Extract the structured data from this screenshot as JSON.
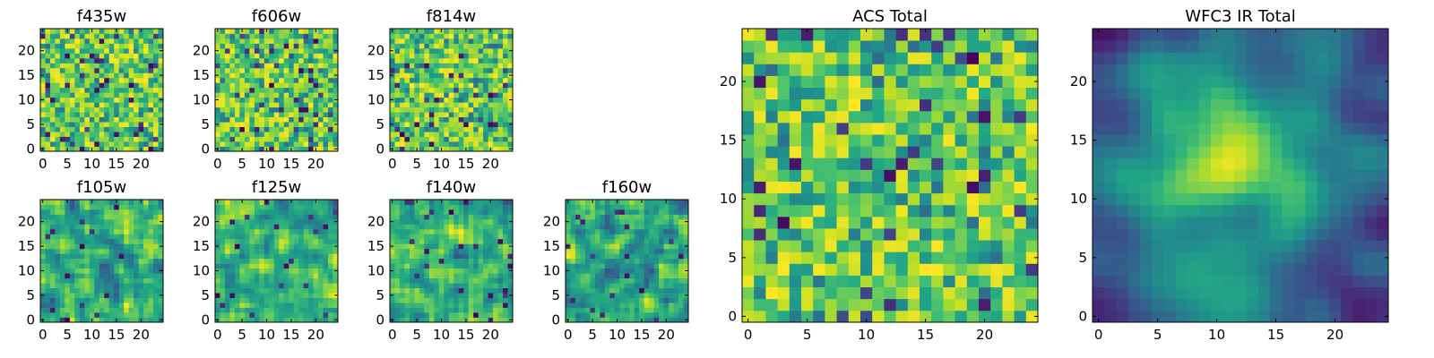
{
  "chart_data": [
    {
      "type": "heatmap",
      "title": "f435w",
      "colormap": "viridis",
      "xlim": [
        0,
        24
      ],
      "ylim": [
        0,
        24
      ],
      "xticks": [
        "0",
        "5",
        "10",
        "15",
        "20"
      ],
      "yticks": [
        "0",
        "5",
        "10",
        "15",
        "20"
      ],
      "grid_size": [
        25,
        25
      ],
      "texture": "fine"
    },
    {
      "type": "heatmap",
      "title": "f606w",
      "colormap": "viridis",
      "xlim": [
        0,
        24
      ],
      "ylim": [
        0,
        24
      ],
      "xticks": [
        "0",
        "5",
        "10",
        "15",
        "20"
      ],
      "yticks": [
        "0",
        "5",
        "10",
        "15",
        "20"
      ],
      "grid_size": [
        25,
        25
      ],
      "texture": "fine"
    },
    {
      "type": "heatmap",
      "title": "f814w",
      "colormap": "viridis",
      "xlim": [
        0,
        24
      ],
      "ylim": [
        0,
        24
      ],
      "xticks": [
        "0",
        "5",
        "10",
        "15",
        "20"
      ],
      "yticks": [
        "0",
        "5",
        "10",
        "15",
        "20"
      ],
      "grid_size": [
        25,
        25
      ],
      "texture": "fine"
    },
    {
      "type": "heatmap",
      "title": "f105w",
      "colormap": "viridis",
      "xlim": [
        0,
        24
      ],
      "ylim": [
        0,
        24
      ],
      "xticks": [
        "0",
        "5",
        "10",
        "15",
        "20"
      ],
      "yticks": [
        "0",
        "5",
        "10",
        "15",
        "20"
      ],
      "grid_size": [
        25,
        25
      ],
      "texture": "smooth"
    },
    {
      "type": "heatmap",
      "title": "f125w",
      "colormap": "viridis",
      "xlim": [
        0,
        24
      ],
      "ylim": [
        0,
        24
      ],
      "xticks": [
        "0",
        "5",
        "10",
        "15",
        "20"
      ],
      "yticks": [
        "0",
        "5",
        "10",
        "15",
        "20"
      ],
      "grid_size": [
        25,
        25
      ],
      "texture": "smooth"
    },
    {
      "type": "heatmap",
      "title": "f140w",
      "colormap": "viridis",
      "xlim": [
        0,
        24
      ],
      "ylim": [
        0,
        24
      ],
      "xticks": [
        "0",
        "5",
        "10",
        "15",
        "20"
      ],
      "yticks": [
        "0",
        "5",
        "10",
        "15",
        "20"
      ],
      "grid_size": [
        25,
        25
      ],
      "texture": "smooth"
    },
    {
      "type": "heatmap",
      "title": "f160w",
      "colormap": "viridis",
      "xlim": [
        0,
        24
      ],
      "ylim": [
        0,
        24
      ],
      "xticks": [
        "0",
        "5",
        "10",
        "15",
        "20"
      ],
      "yticks": [
        "0",
        "5",
        "10",
        "15",
        "20"
      ],
      "grid_size": [
        25,
        25
      ],
      "texture": "smooth"
    },
    {
      "type": "heatmap",
      "title": "ACS Total",
      "colormap": "viridis",
      "xlim": [
        0,
        24
      ],
      "ylim": [
        0,
        24
      ],
      "xticks": [
        "0",
        "5",
        "10",
        "15",
        "20"
      ],
      "yticks": [
        "0",
        "5",
        "10",
        "15",
        "20"
      ],
      "grid_size": [
        25,
        25
      ],
      "texture": "fine"
    },
    {
      "type": "heatmap",
      "title": "WFC3 IR Total",
      "colormap": "viridis",
      "xlim": [
        0,
        24
      ],
      "ylim": [
        0,
        24
      ],
      "xticks": [
        "0",
        "5",
        "10",
        "15",
        "20"
      ],
      "yticks": [
        "0",
        "5",
        "10",
        "15",
        "20"
      ],
      "grid_size": [
        25,
        25
      ],
      "texture": "blob"
    }
  ]
}
